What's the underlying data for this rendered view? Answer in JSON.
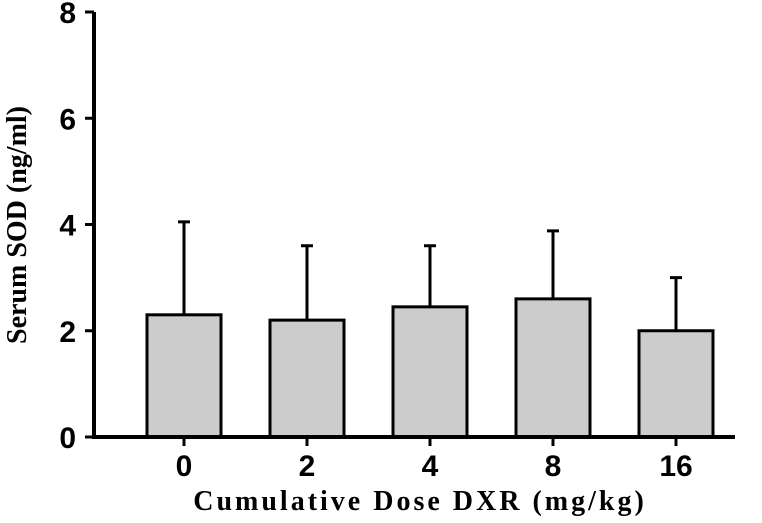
{
  "chart_data": {
    "type": "bar",
    "categories": [
      "0",
      "2",
      "4",
      "8",
      "16"
    ],
    "values": [
      2.3,
      2.2,
      2.45,
      2.6,
      2.0
    ],
    "error_upper": [
      4.05,
      3.6,
      3.6,
      3.88,
      3.0
    ],
    "xlabel": "Cumulative Dose DXR (mg/kg)",
    "ylabel": "Serum SOD (ng/ml)",
    "ylim": [
      0,
      8
    ],
    "yticks": [
      "0",
      "2",
      "4",
      "6",
      "8"
    ],
    "grid": false,
    "legend": "none",
    "colors": {
      "bar_fill": "#cccccc",
      "bar_stroke": "#000000",
      "axis": "#000000"
    }
  }
}
